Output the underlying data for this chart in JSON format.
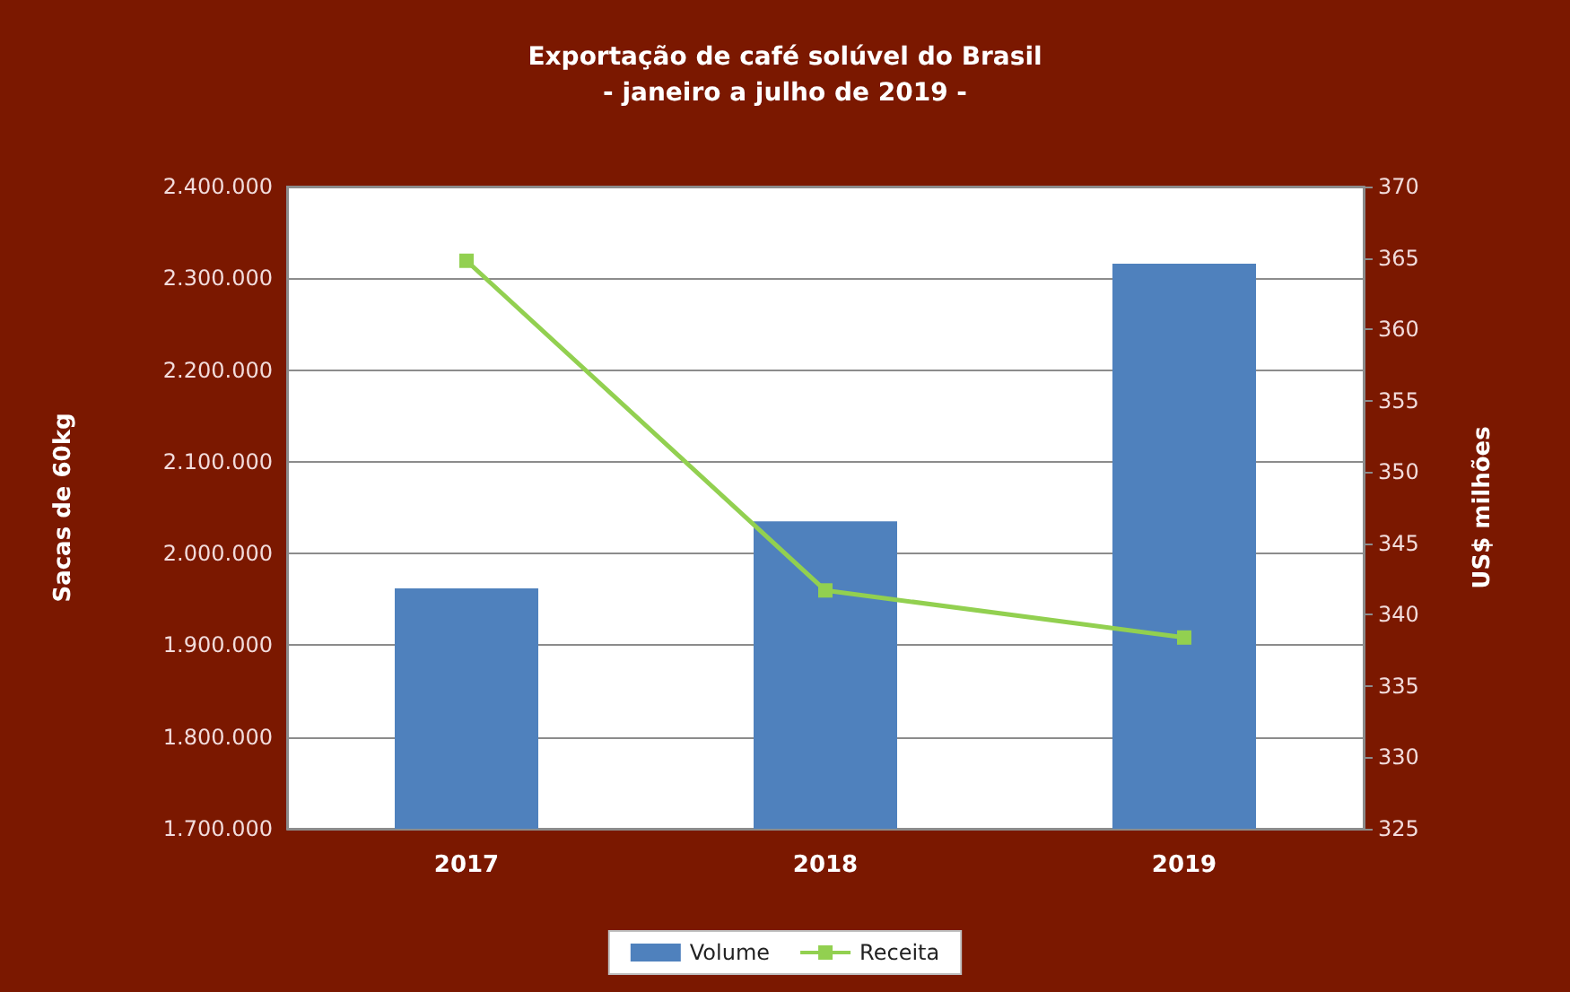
{
  "chart_data": {
    "type": "bar",
    "title": "Exportação de café solúvel do Brasil",
    "subtitle": "- janeiro a julho de 2019 -",
    "ylabel": "Sacas de 60kg",
    "y2label": "US$ milhões",
    "categories": [
      "2017",
      "2018",
      "2019"
    ],
    "series": [
      {
        "name": "Volume",
        "color": "#4f81bd",
        "values": [
          1962000,
          2035000,
          2316000
        ]
      },
      {
        "name": "Receita",
        "type": "line",
        "axis": "y2",
        "color": "#92d050",
        "values": [
          364.8,
          341.7,
          338.4
        ]
      }
    ],
    "ylim": [
      1700000,
      2400000
    ],
    "yticks": [
      {
        "value": 1700000,
        "label": "1.700.000"
      },
      {
        "value": 1800000,
        "label": "1.800.000"
      },
      {
        "value": 1900000,
        "label": "1.900.000"
      },
      {
        "value": 2000000,
        "label": "2.000.000"
      },
      {
        "value": 2100000,
        "label": "2.100.000"
      },
      {
        "value": 2200000,
        "label": "2.200.000"
      },
      {
        "value": 2300000,
        "label": "2.300.000"
      },
      {
        "value": 2400000,
        "label": "2.400.000"
      }
    ],
    "y2lim": [
      325,
      370
    ],
    "y2ticks": [
      325,
      330,
      335,
      340,
      345,
      350,
      355,
      360,
      365,
      370
    ],
    "grid": "y",
    "legend": "bottom",
    "marker": "square"
  }
}
